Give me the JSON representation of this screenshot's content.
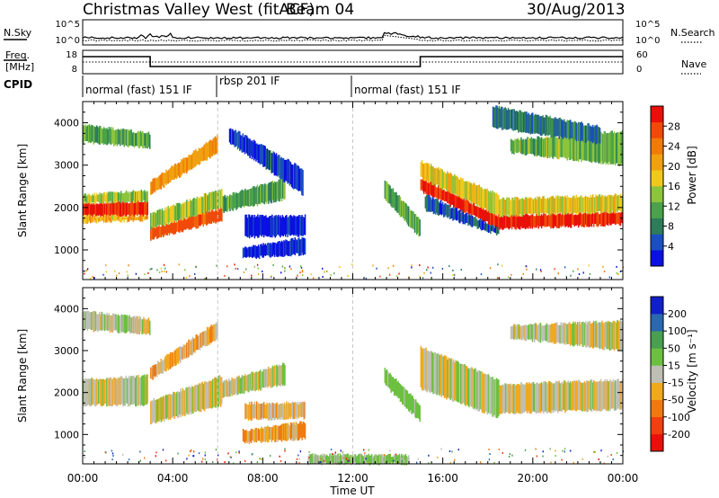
{
  "header": {
    "title": "Christmas Valley West (fitACF)",
    "beam": "Beam 04",
    "date": "30/Aug/2013"
  },
  "top_panels": {
    "nsky_label": "N.Sky",
    "nsky_ticks": [
      "10^5",
      "10^0"
    ],
    "nsearch_label": "N.Search",
    "nsearch_ticks": [
      "10^5",
      "10^0"
    ],
    "freq_label_line1": "Freq.",
    "freq_label_line2": "[MHz]",
    "freq_ticks": [
      "18",
      "8"
    ],
    "nave_label": "Nave",
    "nave_ticks": [
      "60",
      "0"
    ],
    "cpid_label": "CPID",
    "cpid_modes": [
      {
        "label": "normal (fast) 151 IF",
        "start_hour": 0,
        "end_hour": 6
      },
      {
        "label": "rbsp 201 IF",
        "start_hour": 6,
        "end_hour": 12
      },
      {
        "label": "normal (fast) 151 IF",
        "start_hour": 12,
        "end_hour": 24
      }
    ]
  },
  "axes": {
    "ylabel": "Slant Range [km]",
    "yticks": [
      "4000",
      "3000",
      "2000",
      "1000"
    ],
    "xlabel": "Time UT",
    "xticks": [
      "00:00",
      "04:00",
      "08:00",
      "12:00",
      "16:00",
      "20:00",
      "00:00"
    ]
  },
  "power_colorbar": {
    "label": "Power [dB]",
    "ticks": [
      "28",
      "24",
      "20",
      "16",
      "12",
      "8",
      "4"
    ],
    "colors": [
      "#0a10e0",
      "#1a4fc0",
      "#2d7c5a",
      "#4aa24a",
      "#8cc43c",
      "#f0c81e",
      "#f0a010",
      "#f07a0a",
      "#f04a08",
      "#e81008"
    ]
  },
  "velocity_colorbar": {
    "label": "Velocity [m s⁻¹]",
    "ticks": [
      "200",
      "100",
      "50",
      "15",
      "-15",
      "-50",
      "-100",
      "-200"
    ],
    "colors": [
      "#1020c8",
      "#2a68b0",
      "#48a050",
      "#6cc040",
      "#bebeb4",
      "#f0a820",
      "#f07a10",
      "#f04010",
      "#e81008"
    ]
  },
  "chart_data": [
    {
      "type": "heatmap",
      "title": "",
      "xlabel": "Time UT",
      "ylabel": "Slant Range [km]",
      "colorbar_label": "Power [dB]",
      "xlim": [
        0,
        24
      ],
      "ylim": [
        300,
        4500
      ],
      "vmin": 4,
      "vmax": 30,
      "grid": false,
      "bands": [
        {
          "t0": 0.0,
          "t1": 2.9,
          "r0": 1800,
          "r1": 2100,
          "r0e": 1800,
          "r1e": 2150,
          "v": 28
        },
        {
          "t0": 0.0,
          "t1": 2.9,
          "r0": 1650,
          "r1": 1800,
          "r0e": 1700,
          "r1e": 1800,
          "v": 20
        },
        {
          "t0": 0.0,
          "t1": 2.9,
          "r0": 2100,
          "r1": 2300,
          "r0e": 2150,
          "r1e": 2400,
          "v": 16
        },
        {
          "t0": 0.0,
          "t1": 3.0,
          "r0": 3550,
          "r1": 3950,
          "r0e": 3400,
          "r1e": 3750,
          "v": 14
        },
        {
          "t0": 3.0,
          "t1": 6.2,
          "r0": 1250,
          "r1": 1500,
          "r0e": 1700,
          "r1e": 2000,
          "v": 26
        },
        {
          "t0": 3.0,
          "t1": 6.2,
          "r0": 1500,
          "r1": 1850,
          "r0e": 2000,
          "r1e": 2450,
          "v": 16
        },
        {
          "t0": 3.0,
          "t1": 6.0,
          "r0": 2300,
          "r1": 2600,
          "r0e": 3300,
          "r1e": 3700,
          "v": 22
        },
        {
          "t0": 6.2,
          "t1": 9.0,
          "r0": 1900,
          "r1": 2250,
          "r0e": 2200,
          "r1e": 2700,
          "v": 13
        },
        {
          "t0": 6.5,
          "t1": 9.8,
          "r0": 3550,
          "r1": 3900,
          "r0e": 2300,
          "r1e": 2900,
          "v": 7
        },
        {
          "t0": 7.1,
          "t1": 9.9,
          "r0": 800,
          "r1": 1050,
          "r0e": 900,
          "r1e": 1300,
          "v": 6
        },
        {
          "t0": 7.2,
          "t1": 9.9,
          "r0": 1300,
          "r1": 1800,
          "r0e": 1350,
          "r1e": 1800,
          "v": 5
        },
        {
          "t0": 13.4,
          "t1": 15.0,
          "r0": 2200,
          "r1": 2650,
          "r0e": 1300,
          "r1e": 1700,
          "v": 13
        },
        {
          "t0": 15.0,
          "t1": 18.5,
          "r0": 2400,
          "r1": 2700,
          "r0e": 1500,
          "r1e": 1800,
          "v": 28
        },
        {
          "t0": 15.0,
          "t1": 18.5,
          "r0": 2700,
          "r1": 3100,
          "r0e": 1800,
          "r1e": 2300,
          "v": 18
        },
        {
          "t0": 15.2,
          "t1": 18.5,
          "r0": 1950,
          "r1": 2300,
          "r0e": 1350,
          "r1e": 1500,
          "v": 8
        },
        {
          "t0": 18.5,
          "t1": 24.0,
          "r0": 1500,
          "r1": 1800,
          "r0e": 1600,
          "r1e": 1900,
          "v": 28
        },
        {
          "t0": 18.5,
          "t1": 24.0,
          "r0": 1800,
          "r1": 2200,
          "r0e": 1900,
          "r1e": 2300,
          "v": 18
        },
        {
          "t0": 19.0,
          "t1": 24.0,
          "r0": 3300,
          "r1": 3600,
          "r0e": 3000,
          "r1e": 3800,
          "v": 14
        },
        {
          "t0": 18.2,
          "t1": 23.0,
          "r0": 3900,
          "r1": 4400,
          "r0e": 3500,
          "r1e": 3900,
          "v": 10
        }
      ]
    },
    {
      "type": "heatmap",
      "title": "",
      "xlabel": "Time UT",
      "ylabel": "Slant Range [km]",
      "colorbar_label": "Velocity [m s⁻¹]",
      "xlim": [
        0,
        24
      ],
      "ylim": [
        300,
        4500
      ],
      "vmin": -200,
      "vmax": 200,
      "grid": false,
      "bands": [
        {
          "t0": 0.0,
          "t1": 2.9,
          "r0": 1700,
          "r1": 2300,
          "r0e": 1700,
          "r1e": 2400,
          "v": 0
        },
        {
          "t0": 0.0,
          "t1": 3.0,
          "r0": 3500,
          "r1": 3950,
          "r0e": 3400,
          "r1e": 3750,
          "v": 0
        },
        {
          "t0": 3.0,
          "t1": 6.2,
          "r0": 1250,
          "r1": 1800,
          "r0e": 1700,
          "r1e": 2400,
          "v": 0
        },
        {
          "t0": 3.0,
          "t1": 6.0,
          "r0": 2300,
          "r1": 2600,
          "r0e": 3300,
          "r1e": 3700,
          "v": -45
        },
        {
          "t0": 6.2,
          "t1": 9.0,
          "r0": 1900,
          "r1": 2250,
          "r0e": 2200,
          "r1e": 2700,
          "v": 0
        },
        {
          "t0": 7.1,
          "t1": 9.9,
          "r0": 800,
          "r1": 1100,
          "r0e": 900,
          "r1e": 1300,
          "v": -60
        },
        {
          "t0": 7.2,
          "t1": 9.9,
          "r0": 1350,
          "r1": 1750,
          "r0e": 1400,
          "r1e": 1750,
          "v": -40
        },
        {
          "t0": 13.4,
          "t1": 15.0,
          "r0": 2200,
          "r1": 2600,
          "r0e": 1300,
          "r1e": 1700,
          "v": 40
        },
        {
          "t0": 15.0,
          "t1": 18.5,
          "r0": 2100,
          "r1": 3100,
          "r0e": 1400,
          "r1e": 2300,
          "v": 0
        },
        {
          "t0": 18.5,
          "t1": 24.0,
          "r0": 1500,
          "r1": 2200,
          "r0e": 1600,
          "r1e": 2300,
          "v": 0
        },
        {
          "t0": 19.0,
          "t1": 24.0,
          "r0": 3300,
          "r1": 3600,
          "r0e": 3000,
          "r1e": 3700,
          "v": 0
        },
        {
          "t0": 10.0,
          "t1": 14.5,
          "r0": 300,
          "r1": 520,
          "r0e": 300,
          "r1e": 500,
          "v": 30
        }
      ]
    }
  ]
}
